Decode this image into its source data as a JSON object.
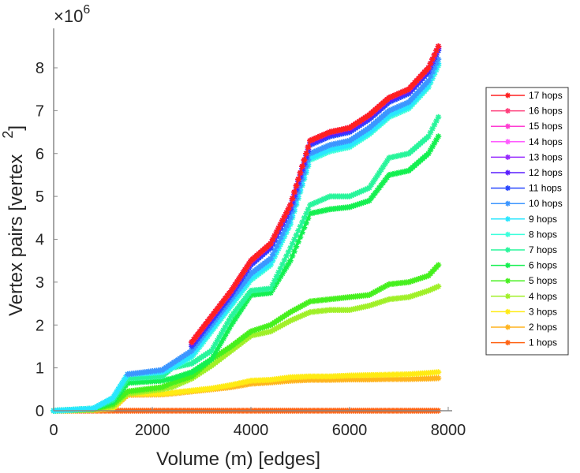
{
  "chart_data": {
    "type": "line",
    "title": "",
    "xlabel": "Volume (m) [edges]",
    "ylabel": "Vertex pairs [vertex",
    "ylabel_superscript": "2",
    "ylabel_close": "]",
    "y_multiplier": "×10",
    "y_multiplier_exponent": "6",
    "xlim": [
      0,
      8000
    ],
    "ylim": [
      0,
      8.8
    ],
    "xticks": [
      0,
      2000,
      4000,
      6000,
      8000
    ],
    "xtick_labels": [
      "0",
      "2000",
      "4000",
      "6000",
      "8000"
    ],
    "yticks": [
      0,
      1,
      2,
      3,
      4,
      5,
      6,
      7,
      8
    ],
    "ytick_labels": [
      "0",
      "1",
      "2",
      "3",
      "4",
      "5",
      "6",
      "7",
      "8"
    ],
    "grid": false,
    "legend_position": "right",
    "marker": "asterisk",
    "series": [
      {
        "name": "17 hops",
        "color": "#ff2020",
        "x": [
          2800,
          3200,
          3600,
          4000,
          4400,
          4800,
          5200,
          5600,
          6000,
          6400,
          6800,
          7200,
          7600,
          7800
        ],
        "y": [
          1.6,
          2.2,
          2.8,
          3.5,
          3.9,
          4.8,
          6.3,
          6.5,
          6.6,
          6.9,
          7.3,
          7.5,
          8.0,
          8.5
        ]
      },
      {
        "name": "16 hops",
        "color": "#ff3c7a",
        "x": [
          2800,
          3200,
          3600,
          4000,
          4400,
          4800,
          5200,
          5600,
          6000,
          6400,
          6800,
          7200,
          7600,
          7800
        ],
        "y": [
          1.6,
          2.2,
          2.8,
          3.5,
          3.9,
          4.8,
          6.3,
          6.5,
          6.6,
          6.9,
          7.3,
          7.5,
          8.0,
          8.5
        ]
      },
      {
        "name": "15 hops",
        "color": "#ff3cd2",
        "x": [
          2800,
          3200,
          3600,
          4000,
          4400,
          4800,
          5200,
          5600,
          6000,
          6400,
          6800,
          7200,
          7600,
          7800
        ],
        "y": [
          1.6,
          2.2,
          2.8,
          3.5,
          3.9,
          4.8,
          6.3,
          6.5,
          6.6,
          6.9,
          7.3,
          7.5,
          8.0,
          8.5
        ]
      },
      {
        "name": "14 hops",
        "color": "#ff5aff",
        "x": [
          2800,
          3200,
          3600,
          4000,
          4400,
          4800,
          5200,
          5600,
          6000,
          6400,
          6800,
          7200,
          7600,
          7800
        ],
        "y": [
          1.6,
          2.2,
          2.8,
          3.5,
          3.9,
          4.8,
          6.3,
          6.5,
          6.6,
          6.9,
          7.3,
          7.5,
          8.0,
          8.5
        ]
      },
      {
        "name": "13 hops",
        "color": "#9628ff",
        "x": [
          2800,
          3200,
          3600,
          4000,
          4400,
          4800,
          5200,
          5600,
          6000,
          6400,
          6800,
          7200,
          7600,
          7800
        ],
        "y": [
          1.6,
          2.2,
          2.8,
          3.5,
          3.9,
          4.8,
          6.3,
          6.5,
          6.6,
          6.9,
          7.3,
          7.5,
          8.0,
          8.5
        ]
      },
      {
        "name": "12 hops",
        "color": "#5a1eff",
        "x": [
          2800,
          3200,
          3600,
          4000,
          4400,
          4800,
          5200,
          5600,
          6000,
          6400,
          6800,
          7200,
          7600,
          7800
        ],
        "y": [
          1.55,
          2.15,
          2.75,
          3.45,
          3.85,
          4.75,
          6.25,
          6.45,
          6.55,
          6.85,
          7.25,
          7.45,
          7.95,
          8.45
        ]
      },
      {
        "name": "11 hops",
        "color": "#2846ff",
        "x": [
          2800,
          3200,
          3600,
          4000,
          4400,
          4800,
          5200,
          5600,
          6000,
          6400,
          6800,
          7200,
          7600,
          7800
        ],
        "y": [
          1.5,
          2.1,
          2.7,
          3.4,
          3.8,
          4.7,
          6.2,
          6.4,
          6.5,
          6.8,
          7.2,
          7.4,
          7.9,
          8.4
        ]
      },
      {
        "name": "10 hops",
        "color": "#3c96ff",
        "x": [
          1500,
          2200,
          2800,
          3200,
          3600,
          4000,
          4400,
          4800,
          5200,
          5600,
          6000,
          6400,
          6800,
          7200,
          7600,
          7800
        ],
        "y": [
          0.85,
          0.95,
          1.4,
          2.0,
          2.6,
          3.2,
          3.55,
          4.5,
          6.0,
          6.2,
          6.3,
          6.6,
          7.0,
          7.2,
          7.7,
          8.2
        ]
      },
      {
        "name": "9 hops",
        "color": "#28e6ff",
        "x": [
          0,
          800,
          1200,
          1500,
          2200,
          2400,
          2800,
          3200,
          3600,
          4000,
          4400,
          4800,
          5200,
          5600,
          6000,
          6400,
          6800,
          7200,
          7600,
          7800
        ],
        "y": [
          0,
          0.05,
          0.3,
          0.85,
          0.9,
          1.0,
          1.3,
          1.9,
          2.5,
          3.1,
          3.45,
          4.4,
          5.9,
          6.1,
          6.2,
          6.5,
          6.9,
          7.1,
          7.6,
          8.1
        ]
      },
      {
        "name": "8 hops",
        "color": "#3cffdc",
        "x": [
          0,
          800,
          1200,
          1500,
          2200,
          2400,
          2800,
          3200,
          3600,
          4000,
          4400,
          4800,
          5200,
          5600,
          6000,
          6400,
          6800,
          7200,
          7600,
          7800
        ],
        "y": [
          0,
          0.05,
          0.3,
          0.85,
          0.9,
          1.0,
          1.25,
          1.85,
          2.45,
          3.05,
          3.4,
          4.35,
          5.85,
          6.05,
          6.15,
          6.45,
          6.85,
          7.05,
          7.55,
          8.05
        ]
      },
      {
        "name": "7 hops",
        "color": "#28f59b",
        "x": [
          0,
          800,
          1200,
          1500,
          2200,
          2400,
          2800,
          3200,
          3600,
          4000,
          4400,
          4800,
          5200,
          5600,
          6000,
          6400,
          6800,
          7200,
          7600,
          7800
        ],
        "y": [
          0,
          0.05,
          0.25,
          0.75,
          0.8,
          1.0,
          1.1,
          1.4,
          2.2,
          2.8,
          2.85,
          3.8,
          4.8,
          5.0,
          5.0,
          5.2,
          5.9,
          6.0,
          6.4,
          6.85
        ]
      },
      {
        "name": "6 hops",
        "color": "#14f050",
        "x": [
          0,
          800,
          1200,
          1500,
          2200,
          2400,
          2800,
          3200,
          3600,
          4000,
          4400,
          4800,
          5200,
          5600,
          6000,
          6400,
          6800,
          7200,
          7600,
          7800
        ],
        "y": [
          0,
          0.05,
          0.2,
          0.65,
          0.7,
          0.75,
          0.9,
          1.2,
          2.0,
          2.7,
          2.75,
          3.5,
          4.6,
          4.7,
          4.75,
          4.9,
          5.5,
          5.6,
          6.0,
          6.4
        ]
      },
      {
        "name": "5 hops",
        "color": "#46f01e",
        "x": [
          0,
          800,
          1200,
          1500,
          2200,
          2400,
          2800,
          3200,
          3600,
          4000,
          4400,
          4800,
          5200,
          5600,
          6000,
          6400,
          6800,
          7200,
          7600,
          7800
        ],
        "y": [
          0,
          0.03,
          0.15,
          0.45,
          0.55,
          0.65,
          0.8,
          1.2,
          1.5,
          1.85,
          2.0,
          2.3,
          2.55,
          2.6,
          2.65,
          2.7,
          2.95,
          3.0,
          3.15,
          3.4
        ]
      },
      {
        "name": "4 hops",
        "color": "#a0f028",
        "x": [
          0,
          800,
          1200,
          1500,
          2200,
          2400,
          2800,
          3200,
          3600,
          4000,
          4400,
          4800,
          5200,
          5600,
          6000,
          6400,
          6800,
          7200,
          7600,
          7800
        ],
        "y": [
          0,
          0.03,
          0.1,
          0.4,
          0.5,
          0.55,
          0.75,
          1.05,
          1.4,
          1.75,
          1.85,
          2.1,
          2.3,
          2.35,
          2.35,
          2.45,
          2.6,
          2.65,
          2.8,
          2.9
        ]
      },
      {
        "name": "3 hops",
        "color": "#ffeb14",
        "x": [
          0,
          800,
          1200,
          1500,
          2200,
          2400,
          2800,
          3200,
          3600,
          4000,
          4400,
          4800,
          5200,
          5600,
          6000,
          6400,
          6800,
          7200,
          7600,
          7800
        ],
        "y": [
          0,
          0.02,
          0.05,
          0.4,
          0.4,
          0.42,
          0.47,
          0.52,
          0.6,
          0.7,
          0.72,
          0.78,
          0.8,
          0.8,
          0.82,
          0.83,
          0.84,
          0.85,
          0.88,
          0.9
        ]
      },
      {
        "name": "2 hops",
        "color": "#ffb41e",
        "x": [
          0,
          800,
          1200,
          1500,
          2200,
          2400,
          2800,
          3200,
          3600,
          4000,
          4400,
          4800,
          5200,
          5600,
          6000,
          6400,
          6800,
          7200,
          7600,
          7800
        ],
        "y": [
          0,
          0.02,
          0.05,
          0.37,
          0.38,
          0.4,
          0.45,
          0.5,
          0.55,
          0.63,
          0.66,
          0.7,
          0.72,
          0.72,
          0.73,
          0.73,
          0.74,
          0.74,
          0.75,
          0.76
        ]
      },
      {
        "name": "1 hops",
        "color": "#ff6414",
        "x": [
          0,
          7800
        ],
        "y": [
          0,
          0
        ]
      }
    ]
  }
}
